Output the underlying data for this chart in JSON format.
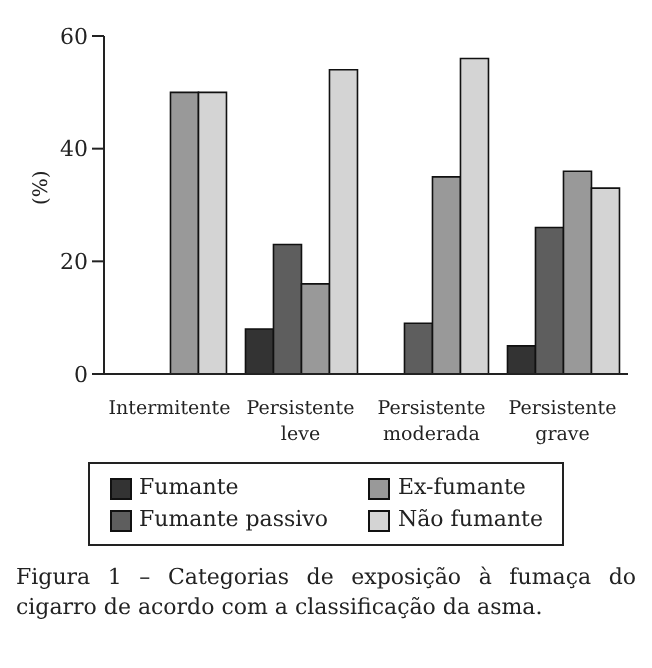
{
  "chart_data": {
    "type": "bar",
    "ylabel": "(%)",
    "categories": [
      "Intermitente",
      "Persistente leve",
      "Persistente moderada",
      "Persistente grave"
    ],
    "series": [
      {
        "name": "Fumante",
        "color": "#333333",
        "values": [
          0,
          8,
          0,
          5
        ]
      },
      {
        "name": "Fumante passivo",
        "color": "#5e5e5e",
        "values": [
          0,
          23,
          9,
          26
        ]
      },
      {
        "name": "Ex-fumante",
        "color": "#999999",
        "values": [
          50,
          16,
          35,
          36
        ]
      },
      {
        "name": "Não fumante",
        "color": "#d4d4d4",
        "values": [
          50,
          54,
          56,
          33
        ]
      }
    ],
    "ylim": [
      0,
      60
    ],
    "yticks": [
      0,
      20,
      40,
      60
    ],
    "grid": false,
    "legend": "bottom",
    "annotations": [
      "Figura 1 – Categorias de exposição à fumaça do cigarro de acordo com a classificação da asma."
    ]
  }
}
